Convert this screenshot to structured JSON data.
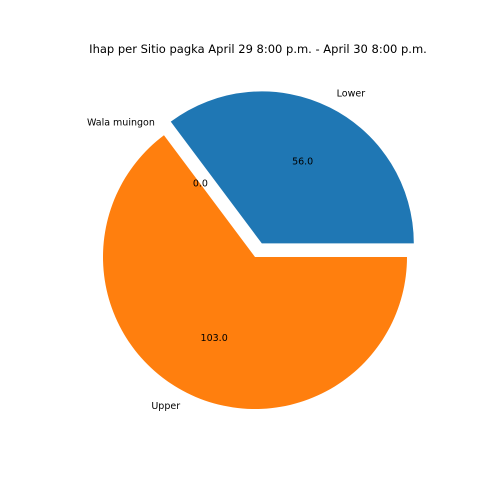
{
  "chart_data": {
    "type": "pie",
    "title": "Ihap per Sitio pagka April 29 8:00 p.m. - April 30 8:00 p.m.",
    "labels": [
      "Lower",
      "Wala muingon",
      "Upper"
    ],
    "values": [
      56.0,
      0.0,
      103.0
    ],
    "value_labels": [
      "56.0",
      "0.0",
      "103.0"
    ],
    "colors": [
      "#1f77b4",
      "#2ca02c",
      "#ff7f0e"
    ],
    "exploded": [
      "Lower"
    ],
    "legend": "none"
  }
}
